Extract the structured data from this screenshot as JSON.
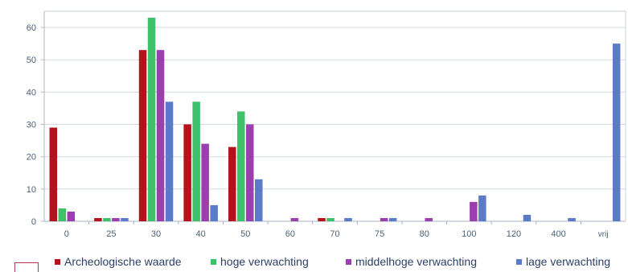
{
  "chart_data": {
    "type": "bar",
    "title": "",
    "xlabel": "",
    "ylabel": "",
    "categories": [
      "0",
      "25",
      "30",
      "40",
      "50",
      "60",
      "70",
      "75",
      "80",
      "100",
      "120",
      "400",
      "vrij"
    ],
    "ylim": [
      0,
      65
    ],
    "yticks": [
      0,
      10,
      20,
      30,
      40,
      50,
      60
    ],
    "grid": true,
    "legend_position": "bottom",
    "series": [
      {
        "name": "Archeologische waarde",
        "color": "#b5121b",
        "values": [
          29,
          1,
          53,
          30,
          23,
          0,
          1,
          0,
          0,
          0,
          0,
          0,
          0
        ]
      },
      {
        "name": "hoge verwachting",
        "color": "#3fc16c",
        "values": [
          4,
          1,
          63,
          37,
          34,
          0,
          1,
          0,
          0,
          0,
          0,
          0,
          0
        ]
      },
      {
        "name": "middelhoge verwachting",
        "color": "#9b3fae",
        "values": [
          3,
          1,
          53,
          24,
          30,
          1,
          0,
          1,
          1,
          6,
          0,
          0,
          0
        ]
      },
      {
        "name": "lage verwachting",
        "color": "#5b7ac8",
        "values": [
          0,
          1,
          37,
          5,
          13,
          0,
          1,
          1,
          0,
          8,
          2,
          1,
          55
        ]
      }
    ]
  }
}
